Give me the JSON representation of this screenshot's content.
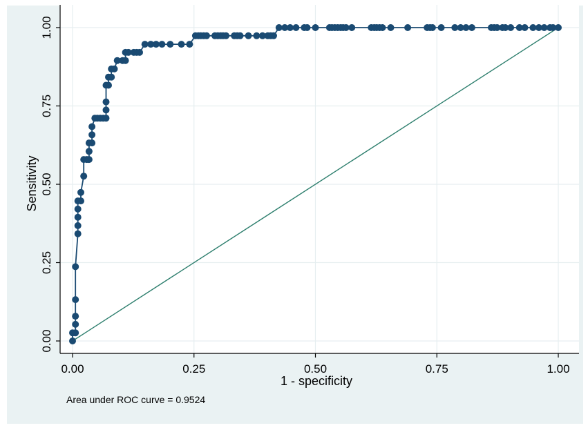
{
  "chart_data": {
    "type": "line",
    "xlabel": "1 - specificity",
    "ylabel": "Sensitivity",
    "note": "Area under ROC curve = 0.9524",
    "xlim": [
      0,
      1
    ],
    "ylim": [
      0,
      1
    ],
    "x_ticks": [
      "0.00",
      "0.25",
      "0.50",
      "0.75",
      "1.00"
    ],
    "y_ticks": [
      "0.00",
      "0.25",
      "0.50",
      "0.75",
      "1.00"
    ],
    "grid": true,
    "colors": {
      "roc": "#1a4a72",
      "reference": "#2e7f6e",
      "background": "#eaf2f3",
      "plot": "#ffffff"
    },
    "series": [
      {
        "values": [
          [
            0.0,
            0.0
          ],
          [
            0.0,
            0.026
          ],
          [
            0.006,
            0.026
          ],
          [
            0.006,
            0.053
          ],
          [
            0.006,
            0.079
          ],
          [
            0.006,
            0.132
          ],
          [
            0.006,
            0.237
          ],
          [
            0.011,
            0.342
          ],
          [
            0.011,
            0.368
          ],
          [
            0.011,
            0.395
          ],
          [
            0.011,
            0.421
          ],
          [
            0.011,
            0.447
          ],
          [
            0.017,
            0.447
          ],
          [
            0.017,
            0.474
          ],
          [
            0.023,
            0.526
          ],
          [
            0.023,
            0.579
          ],
          [
            0.029,
            0.579
          ],
          [
            0.034,
            0.579
          ],
          [
            0.034,
            0.605
          ],
          [
            0.034,
            0.632
          ],
          [
            0.04,
            0.632
          ],
          [
            0.04,
            0.658
          ],
          [
            0.04,
            0.684
          ],
          [
            0.046,
            0.711
          ],
          [
            0.051,
            0.711
          ],
          [
            0.057,
            0.711
          ],
          [
            0.063,
            0.711
          ],
          [
            0.069,
            0.711
          ],
          [
            0.069,
            0.737
          ],
          [
            0.069,
            0.763
          ],
          [
            0.069,
            0.816
          ],
          [
            0.074,
            0.816
          ],
          [
            0.074,
            0.842
          ],
          [
            0.08,
            0.842
          ],
          [
            0.08,
            0.868
          ],
          [
            0.086,
            0.868
          ],
          [
            0.092,
            0.895
          ],
          [
            0.103,
            0.895
          ],
          [
            0.109,
            0.895
          ],
          [
            0.109,
            0.921
          ],
          [
            0.115,
            0.921
          ],
          [
            0.126,
            0.921
          ],
          [
            0.132,
            0.921
          ],
          [
            0.138,
            0.921
          ],
          [
            0.149,
            0.947
          ],
          [
            0.161,
            0.947
          ],
          [
            0.172,
            0.947
          ],
          [
            0.184,
            0.947
          ],
          [
            0.201,
            0.947
          ],
          [
            0.224,
            0.947
          ],
          [
            0.241,
            0.947
          ],
          [
            0.253,
            0.974
          ],
          [
            0.259,
            0.974
          ],
          [
            0.264,
            0.974
          ],
          [
            0.27,
            0.974
          ],
          [
            0.276,
            0.974
          ],
          [
            0.293,
            0.974
          ],
          [
            0.299,
            0.974
          ],
          [
            0.305,
            0.974
          ],
          [
            0.31,
            0.974
          ],
          [
            0.316,
            0.974
          ],
          [
            0.333,
            0.974
          ],
          [
            0.339,
            0.974
          ],
          [
            0.345,
            0.974
          ],
          [
            0.362,
            0.974
          ],
          [
            0.379,
            0.974
          ],
          [
            0.391,
            0.974
          ],
          [
            0.402,
            0.974
          ],
          [
            0.408,
            0.974
          ],
          [
            0.414,
            0.974
          ],
          [
            0.425,
            1.0
          ],
          [
            0.437,
            1.0
          ],
          [
            0.448,
            1.0
          ],
          [
            0.46,
            1.0
          ],
          [
            0.477,
            1.0
          ],
          [
            0.483,
            1.0
          ],
          [
            0.5,
            1.0
          ],
          [
            0.529,
            1.0
          ],
          [
            0.534,
            1.0
          ],
          [
            0.54,
            1.0
          ],
          [
            0.546,
            1.0
          ],
          [
            0.552,
            1.0
          ],
          [
            0.557,
            1.0
          ],
          [
            0.563,
            1.0
          ],
          [
            0.575,
            1.0
          ],
          [
            0.615,
            1.0
          ],
          [
            0.621,
            1.0
          ],
          [
            0.626,
            1.0
          ],
          [
            0.632,
            1.0
          ],
          [
            0.638,
            1.0
          ],
          [
            0.655,
            1.0
          ],
          [
            0.69,
            1.0
          ],
          [
            0.73,
            1.0
          ],
          [
            0.736,
            1.0
          ],
          [
            0.741,
            1.0
          ],
          [
            0.759,
            1.0
          ],
          [
            0.787,
            1.0
          ],
          [
            0.799,
            1.0
          ],
          [
            0.81,
            1.0
          ],
          [
            0.822,
            1.0
          ],
          [
            0.862,
            1.0
          ],
          [
            0.868,
            1.0
          ],
          [
            0.874,
            1.0
          ],
          [
            0.885,
            1.0
          ],
          [
            0.891,
            1.0
          ],
          [
            0.902,
            1.0
          ],
          [
            0.92,
            1.0
          ],
          [
            0.931,
            1.0
          ],
          [
            0.948,
            1.0
          ],
          [
            0.96,
            1.0
          ],
          [
            0.971,
            1.0
          ],
          [
            0.983,
            1.0
          ],
          [
            0.989,
            1.0
          ],
          [
            1.0,
            1.0
          ]
        ]
      },
      {
        "values": [
          [
            0,
            0
          ],
          [
            1,
            1
          ]
        ]
      }
    ]
  }
}
